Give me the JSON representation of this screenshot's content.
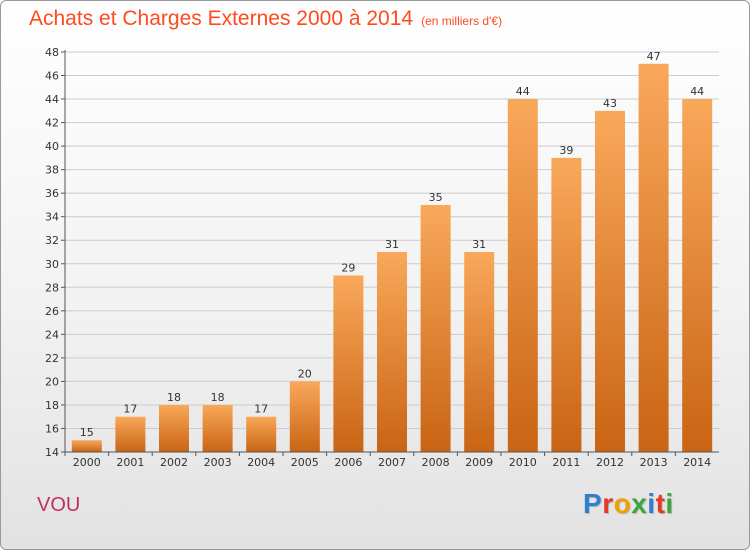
{
  "header": {
    "title": "Achats et Charges Externes 2000 à 2014",
    "subtitle": "(en milliers d'€)"
  },
  "footer": {
    "commune": "VOU",
    "logo_text": "Proxiti",
    "logo_colors": [
      "#2f7fd0",
      "#e23a2a",
      "#f0a000",
      "#3aa83a",
      "#2f7fd0",
      "#e23a2a",
      "#3aa83a"
    ]
  },
  "colors": {
    "title": "#ff4a1f",
    "bar_top": "#f9a85a",
    "bar_bottom": "#c96414",
    "grid": "#cccccc",
    "commune": "#c0305a"
  },
  "chart_data": {
    "type": "bar",
    "categories": [
      "2000",
      "2001",
      "2002",
      "2003",
      "2004",
      "2005",
      "2006",
      "2007",
      "2008",
      "2009",
      "2010",
      "2011",
      "2012",
      "2013",
      "2014"
    ],
    "values": [
      15,
      17,
      18,
      18,
      17,
      20,
      29,
      31,
      35,
      31,
      44,
      39,
      43,
      47,
      44
    ],
    "title": "Achats et Charges Externes 2000 à 2014",
    "subtitle": "(en milliers d'€)",
    "ylim": [
      14,
      48
    ],
    "yticks": [
      14,
      16,
      18,
      20,
      22,
      24,
      26,
      28,
      30,
      32,
      34,
      36,
      38,
      40,
      42,
      44,
      46,
      48
    ],
    "grid": true
  }
}
